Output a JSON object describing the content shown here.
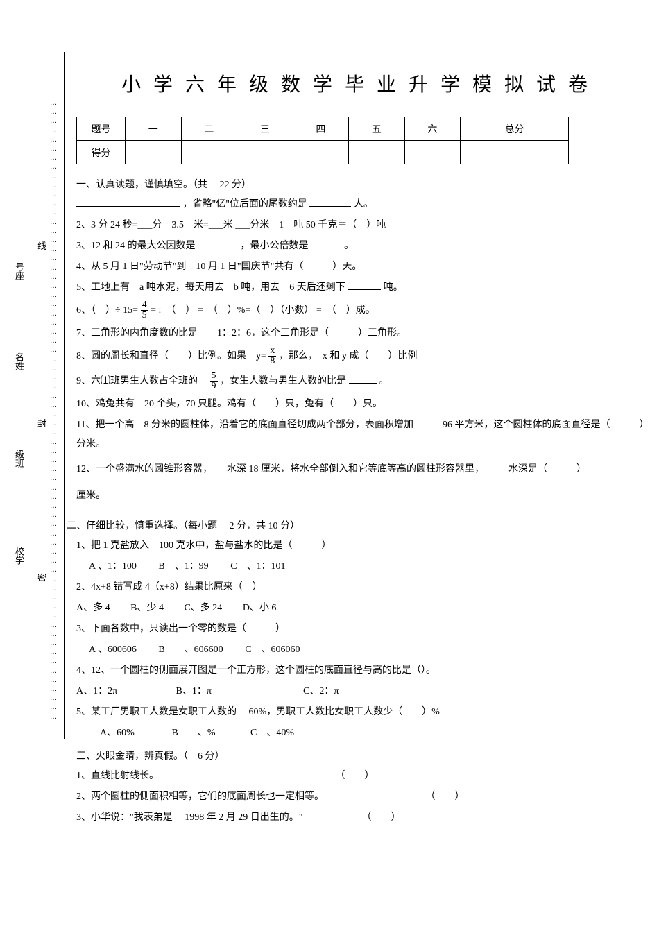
{
  "title": "小学六年级数学毕业升学模拟试卷",
  "score_table": {
    "row_labels": [
      "题号",
      "得分"
    ],
    "columns": [
      "一",
      "二",
      "三",
      "四",
      "五",
      "六",
      "总分"
    ]
  },
  "sections": {
    "s1": {
      "head": "一、认真读题，谨慎填空。（共　 22 分）"
    },
    "s2": {
      "head": "二、仔细比较，慎重选择。（每小题　 2 分，共 10 分）"
    },
    "s3": {
      "head": "三、火眼金睛，辨真假。（　6 分）"
    }
  },
  "fill": {
    "q1_suffix": "，省略\"亿\"位后面的尾数约是",
    "q1_unit": "人。",
    "q2": "2、3 分 24 秒=___分　3.5　米=___米 ___分米　1　吨 50 千克＝（　）吨",
    "q3a": "3、12 和 24 的最大公因数是",
    "q3b": "，最小公倍数是",
    "q4": "4、从 5 月 1 日\"劳动节\"到　10 月 1 日\"国庆节\"共有（　　　）天。",
    "q5a": "5、工地上有　a 吨水泥，每天用去　b 吨，用去　6 天后还剩下",
    "q5b": "吨。",
    "q6a": "6、（　）÷ 15=",
    "q6b": "= :　（　） =　（　）%=（　）（小数） =　（　）成。",
    "q7": "7、三角形的内角度数的比是　　1：2：6，这个三角形是（　　　）三角形。",
    "q8a": "8、圆的周长和直径（　　）比例。如果　y=",
    "q8b": "，那么，　x 和 y 成（　　）比例",
    "q9a": "9、六⑴班男生人数占全班的",
    "q9b": "，女生人数与男生人数的比是",
    "q9c": "。",
    "q10": "10、鸡兔共有　20 个头，70 只腿。鸡有（　　）只，兔有（　　）只。",
    "q11": "11、把一个高　8 分米的圆柱体，沿着它的底面直径切成两个部分，表面积增加　　　96 平方米，这个圆柱体的底面直径是（　　　）分米。",
    "q12": "12、一个盛满水的圆锥形容器，　　水深 18 厘米，将水全部倒入和它等底等高的圆柱形容器里，　　　水深是（　　　）",
    "q12b": "厘米。"
  },
  "choice": {
    "q1": "1、把 1 克盐放入　100 克水中，盐与盐水的比是（　　　）",
    "q1a": "A 、1：100",
    "q1b": "B　、1：99",
    "q1c": "C　、1：101",
    "q2": "2、4x+8 错写成 4（x+8）结果比原来（　）",
    "q2a": "A、多 4",
    "q2b": "B、少 4",
    "q2c": "C、多 24",
    "q2d": "D、小 6",
    "q3": "3、下面各数中，只读出一个零的数是（　　　）",
    "q3a": "A 、600606",
    "q3b": "B　　、606600",
    "q3c": "C　、606060",
    "q4": "4、12、一个圆柱的侧面展开图是一个正方形，这个圆柱的底面直径与高的比是（）。",
    "q4a": "A、1：2π",
    "q4b": "B、1：π",
    "q4c": "C、2：π",
    "q5": "5、某工厂男职工人数是女职工人数的　 60%，男职工人数比女职工人数少（　　）%",
    "q5a": "A、60%",
    "q5b": "B　　、%",
    "q5c": "C　、40%"
  },
  "tf": {
    "q1": "1、直线比射线长。",
    "q2": "2、两个圆柱的侧面积相等，它们的底面周长也一定相等。",
    "q3": "3、小华说：\"我表弟是　 1998 年 2 月 29 日出生的。\""
  },
  "fractions": {
    "f6": {
      "num": "4",
      "den": "5"
    },
    "f8": {
      "num": "x",
      "den": "8"
    },
    "f9": {
      "num": "5",
      "den": "9"
    }
  },
  "side": {
    "seat": "号座",
    "name": "名姓",
    "class": "级班",
    "school": "校学",
    "xian": "线",
    "feng": "封",
    "mi": "密"
  },
  "paren": "（　　）"
}
